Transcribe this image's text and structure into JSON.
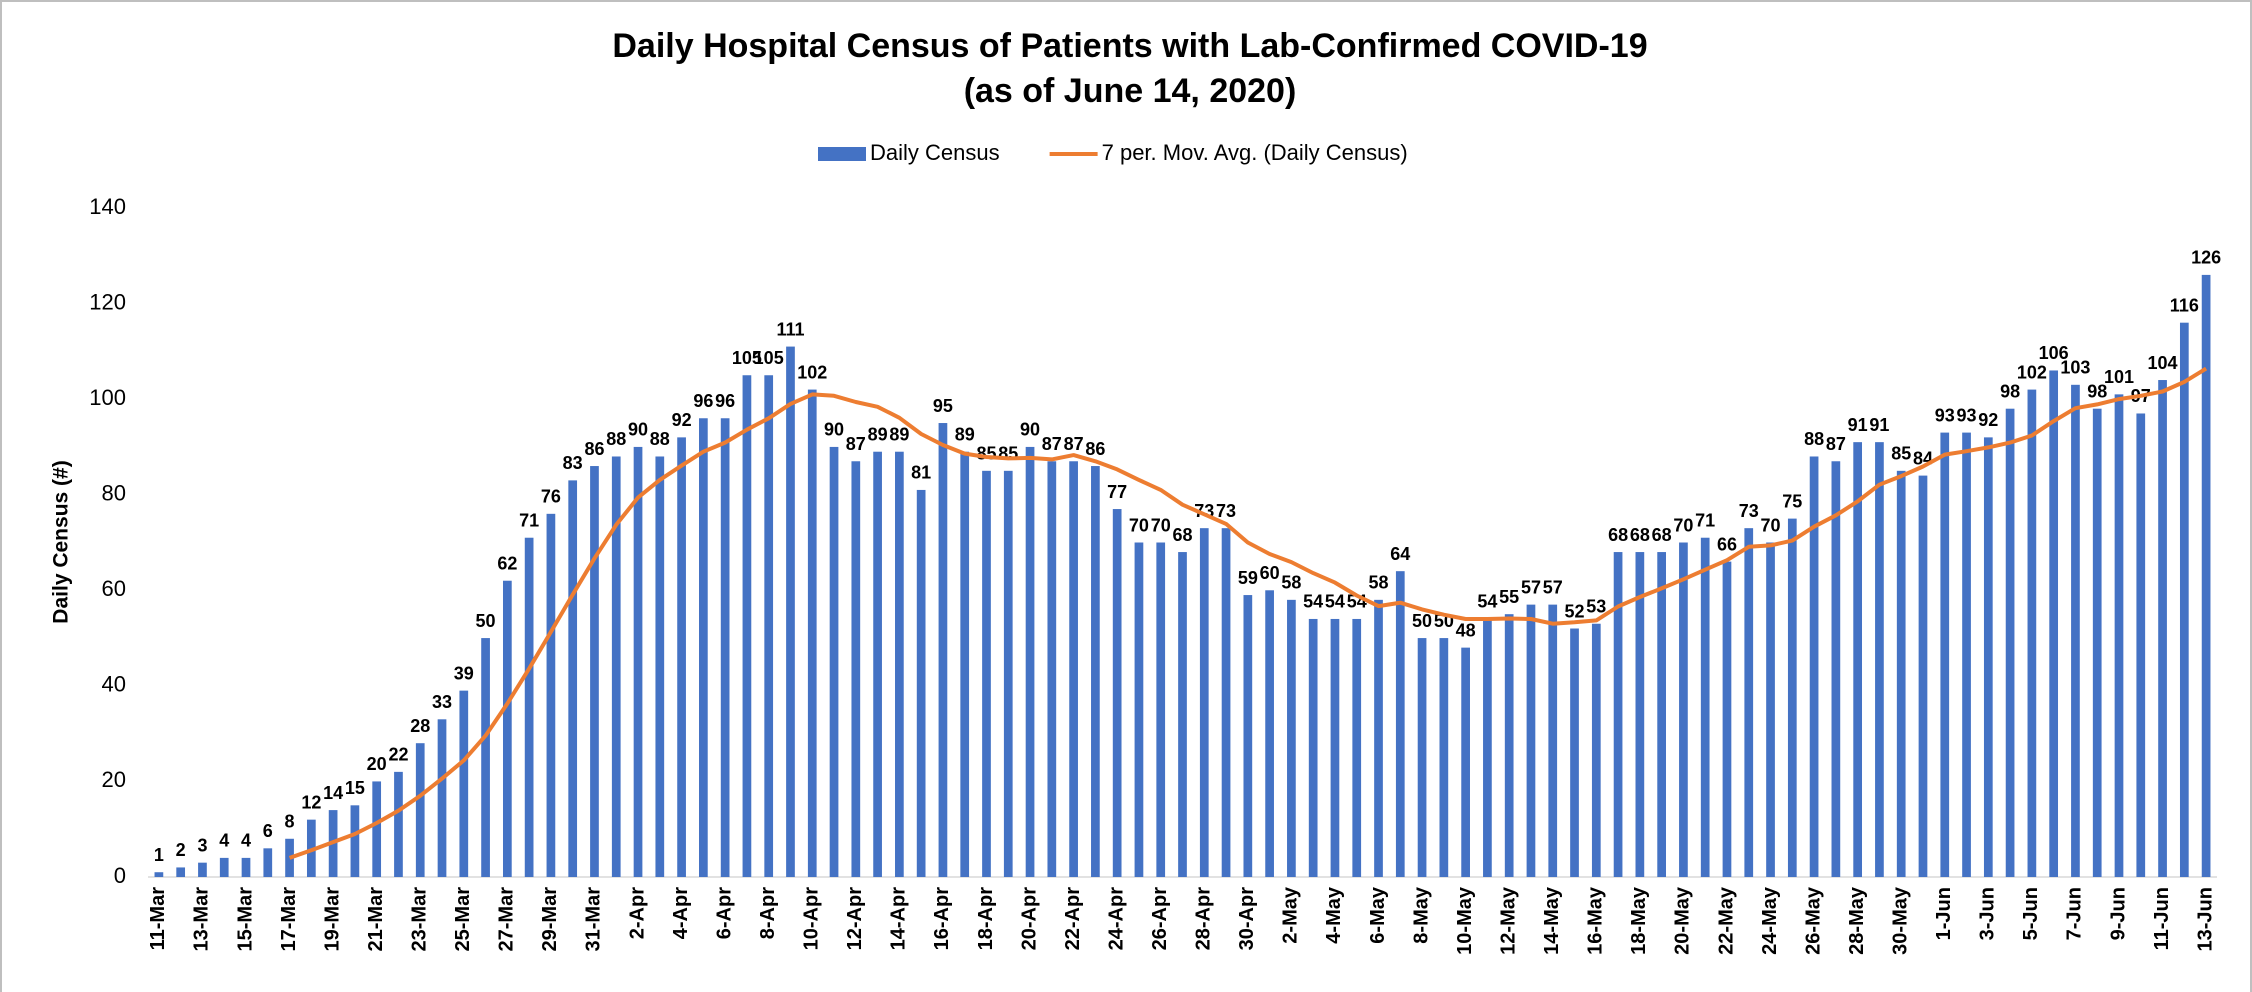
{
  "chart_data": {
    "type": "bar",
    "title": "Daily Hospital Census of Patients with Lab-Confirmed COVID-19",
    "subtitle": "(as of June 14, 2020)",
    "y_label": "Daily Census (#)",
    "legend": "top",
    "grid": false,
    "ylim": [
      0,
      140
    ],
    "yticks": [
      0,
      20,
      40,
      60,
      80,
      100,
      120,
      140
    ],
    "categories": [
      "11-Mar",
      null,
      "13-Mar",
      null,
      "15-Mar",
      null,
      "17-Mar",
      null,
      "19-Mar",
      null,
      "21-Mar",
      null,
      "23-Mar",
      null,
      "25-Mar",
      null,
      "27-Mar",
      null,
      "29-Mar",
      null,
      "31-Mar",
      null,
      "2-Apr",
      null,
      "4-Apr",
      null,
      "6-Apr",
      null,
      "8-Apr",
      null,
      "10-Apr",
      null,
      "12-Apr",
      null,
      "14-Apr",
      null,
      "16-Apr",
      null,
      "18-Apr",
      null,
      "20-Apr",
      null,
      "22-Apr",
      null,
      "24-Apr",
      null,
      "26-Apr",
      null,
      "28-Apr",
      null,
      "30-Apr",
      null,
      "2-May",
      null,
      "4-May",
      null,
      "6-May",
      null,
      "8-May",
      null,
      "10-May",
      null,
      "12-May",
      null,
      "14-May",
      null,
      "16-May",
      null,
      "18-May",
      null,
      "20-May",
      null,
      "22-May",
      null,
      "24-May",
      null,
      "26-May",
      null,
      "28-May",
      null,
      "30-May",
      null,
      "1-Jun",
      null,
      "3-Jun",
      null,
      "5-Jun",
      null,
      "7-Jun",
      null,
      "9-Jun",
      null,
      "11-Jun",
      null,
      "13-Jun"
    ],
    "series": [
      {
        "name": "Daily Census",
        "type": "bar",
        "color": "#4472c4",
        "values": [
          1,
          2,
          3,
          4,
          4,
          6,
          8,
          12,
          14,
          15,
          20,
          22,
          28,
          33,
          39,
          50,
          62,
          71,
          76,
          83,
          86,
          88,
          90,
          88,
          92,
          96,
          96,
          105,
          105,
          111,
          102,
          90,
          87,
          89,
          89,
          81,
          95,
          89,
          85,
          85,
          90,
          87,
          87,
          86,
          77,
          70,
          70,
          68,
          73,
          73,
          59,
          60,
          58,
          54,
          54,
          54,
          58,
          64,
          50,
          50,
          48,
          54,
          55,
          57,
          57,
          52,
          53,
          68,
          68,
          68,
          70,
          71,
          66,
          73,
          70,
          75,
          88,
          87,
          91,
          91,
          85,
          84,
          93,
          93,
          92,
          98,
          102,
          106,
          103,
          98,
          101,
          97,
          104,
          116,
          126
        ]
      },
      {
        "name": "7 per. Mov. Avg. (Daily Census)",
        "type": "line",
        "color": "#ed7d31",
        "values": [
          null,
          null,
          null,
          null,
          null,
          null,
          4.0,
          5.6,
          7.3,
          9.0,
          11.3,
          13.9,
          17.0,
          20.6,
          24.4,
          29.6,
          36.3,
          43.6,
          51.3,
          59.1,
          66.7,
          73.7,
          79.4,
          83.1,
          86.1,
          89.0,
          90.9,
          93.6,
          96.0,
          99.0,
          101.0,
          100.7,
          99.4,
          98.4,
          96.1,
          92.7,
          90.4,
          88.6,
          87.9,
          87.6,
          87.7,
          87.4,
          88.3,
          87.0,
          85.3,
          83.1,
          81.0,
          77.9,
          75.9,
          73.9,
          70.0,
          67.6,
          65.9,
          63.6,
          61.6,
          58.9,
          56.7,
          57.4,
          56.0,
          54.9,
          54.0,
          54.0,
          54.1,
          54.0,
          53.0,
          53.3,
          53.7,
          56.6,
          58.6,
          60.4,
          62.3,
          64.3,
          66.3,
          69.1,
          69.4,
          70.4,
          73.3,
          75.7,
          78.6,
          82.1,
          83.9,
          85.9,
          88.4,
          89.1,
          89.9,
          90.9,
          92.4,
          95.4,
          98.1,
          98.9,
          100.0,
          100.7,
          101.6,
          103.6,
          106.4
        ]
      }
    ]
  }
}
